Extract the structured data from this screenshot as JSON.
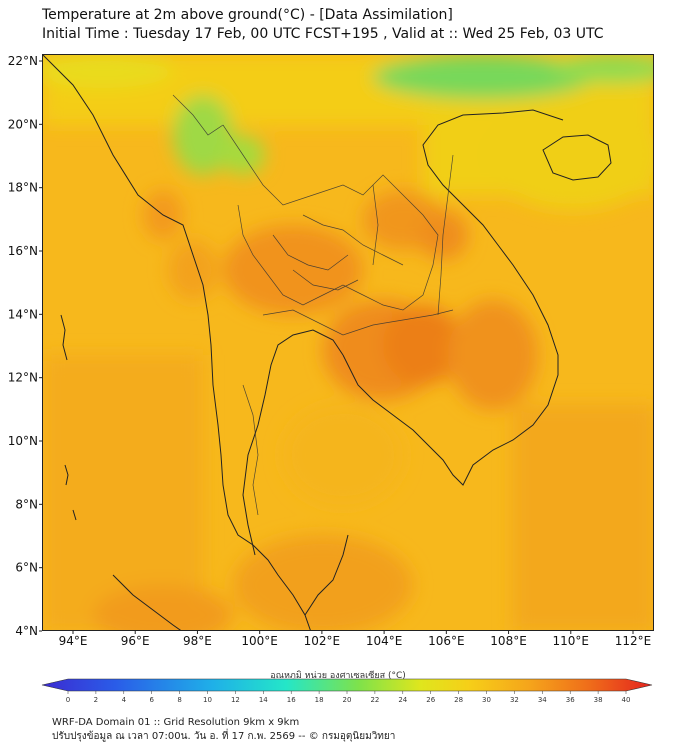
{
  "header": {
    "title_line1": "Temperature at 2m above ground(°C) - [Data Assimilation]",
    "title_line2": "Initial Time : Tuesday 17 Feb, 00 UTC FCST+195 , Valid at :: Wed 25 Feb, 03 UTC"
  },
  "map": {
    "lat_labels": [
      "22°N",
      "20°N",
      "18°N",
      "16°N",
      "14°N",
      "12°N",
      "10°N",
      "8°N",
      "6°N",
      "4°N"
    ],
    "lon_labels": [
      "94°E",
      "96°E",
      "98°E",
      "100°E",
      "102°E",
      "104°E",
      "106°E",
      "108°E",
      "110°E",
      "112°E"
    ]
  },
  "colorbar": {
    "title": "อุณหภูมิ หน่วย องศาเซลเซียส (°C)",
    "ticks": [
      "0",
      "2",
      "4",
      "6",
      "8",
      "10",
      "12",
      "14",
      "16",
      "18",
      "20",
      "22",
      "24",
      "26",
      "28",
      "30",
      "32",
      "34",
      "36",
      "38",
      "40"
    ],
    "min": 0,
    "max": 40
  },
  "footer": {
    "line1": "WRF-DA Domain 01 :: Grid Resolution 9km x 9km",
    "line2": "ปรับปรุงข้อมูล ณ เวลา 07:00น. วัน อ. ที่ 17 ก.พ. 2569 -- © กรมอุตุนิยมวิทยา"
  }
}
